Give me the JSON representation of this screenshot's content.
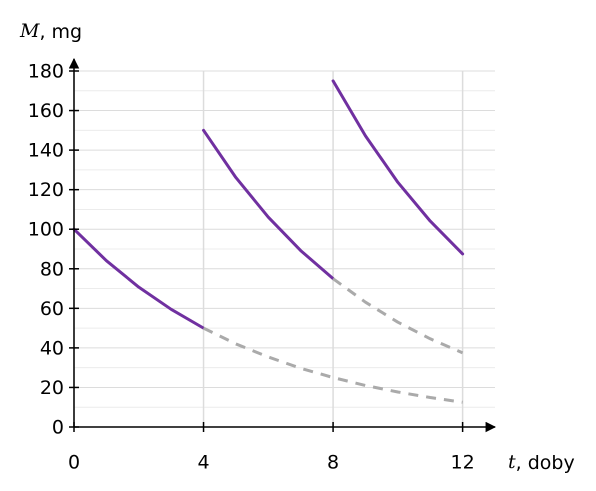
{
  "chart_data": {
    "type": "line",
    "x_label": "t, doby",
    "y_label": "M, mg",
    "xlim": [
      0,
      13
    ],
    "ylim": [
      0,
      180
    ],
    "xticks": [
      0,
      4,
      8,
      12
    ],
    "yticks": [
      0,
      20,
      40,
      60,
      80,
      100,
      120,
      140,
      160,
      180
    ],
    "yminor": [
      10,
      30,
      50,
      70,
      90,
      110,
      130,
      150,
      170
    ],
    "grid": true,
    "series": [
      {
        "color": "#7030a0",
        "dashed": false,
        "x": [
          0,
          1,
          2,
          3,
          4
        ],
        "values": [
          100,
          84.1,
          70.7,
          59.5,
          50
        ]
      },
      {
        "color": "#7030a0",
        "dashed": false,
        "x": [
          4,
          5,
          6,
          7,
          8
        ],
        "values": [
          150,
          126.1,
          106.1,
          89.2,
          75
        ]
      },
      {
        "color": "#7030a0",
        "dashed": false,
        "x": [
          8,
          9,
          10,
          11,
          12
        ],
        "values": [
          175,
          147.2,
          123.7,
          104.1,
          87.5
        ]
      },
      {
        "color": "#aaaaaa",
        "dashed": true,
        "x": [
          4,
          5,
          6,
          7,
          8,
          9,
          10,
          11,
          12
        ],
        "values": [
          50,
          42,
          35.4,
          29.7,
          25,
          21,
          17.7,
          14.9,
          12.5
        ]
      },
      {
        "color": "#aaaaaa",
        "dashed": true,
        "x": [
          8,
          9,
          10,
          11,
          12
        ],
        "values": [
          75,
          63.1,
          53,
          44.6,
          37.5
        ]
      }
    ]
  }
}
